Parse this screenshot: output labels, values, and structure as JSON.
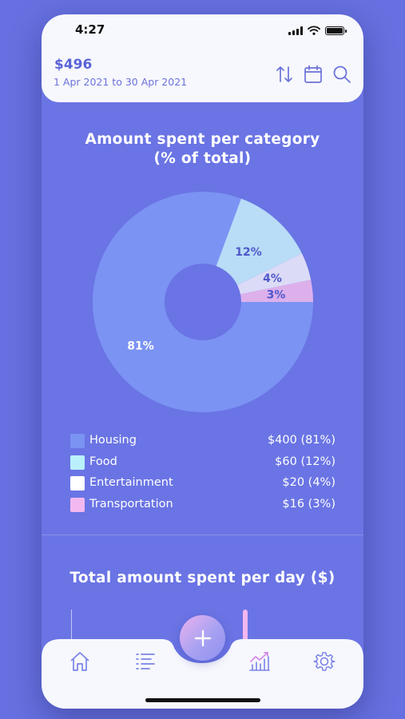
{
  "status_bar": {
    "time": "4:27"
  },
  "header": {
    "amount": "$496",
    "date_range": "1 Apr 2021 to 30 Apr 2021",
    "icons": [
      "sort-icon",
      "calendar-icon",
      "search-icon"
    ]
  },
  "pie_section": {
    "title_line1": "Amount spent per category",
    "title_line2": "(% of total)"
  },
  "chart_data": [
    {
      "type": "pie",
      "donut": true,
      "title": "Amount spent per category (% of total)",
      "categories": [
        "Housing",
        "Food",
        "Entertainment",
        "Transportation"
      ],
      "values": [
        400,
        60,
        20,
        16
      ],
      "percent_labels": [
        "81%",
        "12%",
        "4%",
        "3%"
      ],
      "colors": [
        "#7b93f3",
        "#b9dcf7",
        "#dbdbf7",
        "#ddb0ec"
      ],
      "legend_values": [
        "$400 (81%)",
        "$60 (12%)",
        "$20 (4%)",
        "$16 (3%)"
      ],
      "legend_position": "bottom"
    },
    {
      "type": "bar",
      "title": "Total amount spent per day ($)"
    }
  ],
  "legend": [
    {
      "label": "Housing",
      "value": "$400 (81%)",
      "color": "#7b93f3"
    },
    {
      "label": "Food",
      "value": "$60 (12%)",
      "color": "#b9f0fb"
    },
    {
      "label": "Entertainment",
      "value": "$20 (4%)",
      "color": "#ffffff"
    },
    {
      "label": "Transportation",
      "value": "$16 (3%)",
      "color": "#f2b8f0"
    }
  ],
  "bar_section": {
    "title": "Total amount spent per day ($)"
  },
  "bottom_nav": {
    "items": [
      "home-icon",
      "list-icon",
      "add-icon",
      "chart-icon",
      "settings-icon"
    ],
    "active": "chart-icon"
  },
  "colors": {
    "background": "#6a74e4",
    "accent": "#5b63d8",
    "panel": "#f7f8fd"
  }
}
